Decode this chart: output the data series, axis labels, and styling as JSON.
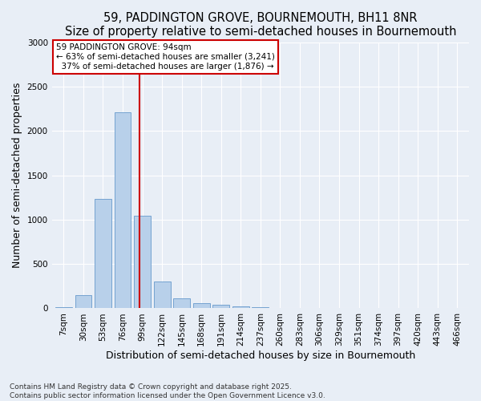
{
  "title": "59, PADDINGTON GROVE, BOURNEMOUTH, BH11 8NR",
  "subtitle": "Size of property relative to semi-detached houses in Bournemouth",
  "xlabel": "Distribution of semi-detached houses by size in Bournemouth",
  "ylabel": "Number of semi-detached properties",
  "categories": [
    "7sqm",
    "30sqm",
    "53sqm",
    "76sqm",
    "99sqm",
    "122sqm",
    "145sqm",
    "168sqm",
    "191sqm",
    "214sqm",
    "237sqm",
    "260sqm",
    "283sqm",
    "306sqm",
    "329sqm",
    "351sqm",
    "374sqm",
    "397sqm",
    "420sqm",
    "443sqm",
    "466sqm"
  ],
  "values": [
    10,
    150,
    1230,
    2210,
    1040,
    300,
    110,
    55,
    40,
    25,
    10,
    3,
    0,
    0,
    0,
    0,
    0,
    0,
    0,
    0,
    0
  ],
  "bar_color": "#b8d0ea",
  "bar_edge_color": "#6699cc",
  "property_value": "94sqm",
  "property_name": "59 PADDINGTON GROVE",
  "pct_smaller": 63,
  "count_smaller": 3241,
  "pct_larger": 37,
  "count_larger": 1876,
  "annotation_box_color": "#ffffff",
  "annotation_box_edge": "#cc0000",
  "line_color": "#cc0000",
  "bg_color": "#e8eef6",
  "plot_bg_color": "#e8eef6",
  "grid_color": "#ffffff",
  "ylim": [
    0,
    3000
  ],
  "yticks": [
    0,
    500,
    1000,
    1500,
    2000,
    2500,
    3000
  ],
  "title_fontsize": 10.5,
  "axis_label_fontsize": 9,
  "tick_fontsize": 7.5,
  "ann_fontsize": 7.5,
  "footnote": "Contains HM Land Registry data © Crown copyright and database right 2025.\nContains public sector information licensed under the Open Government Licence v3.0.",
  "footnote_fontsize": 6.5
}
